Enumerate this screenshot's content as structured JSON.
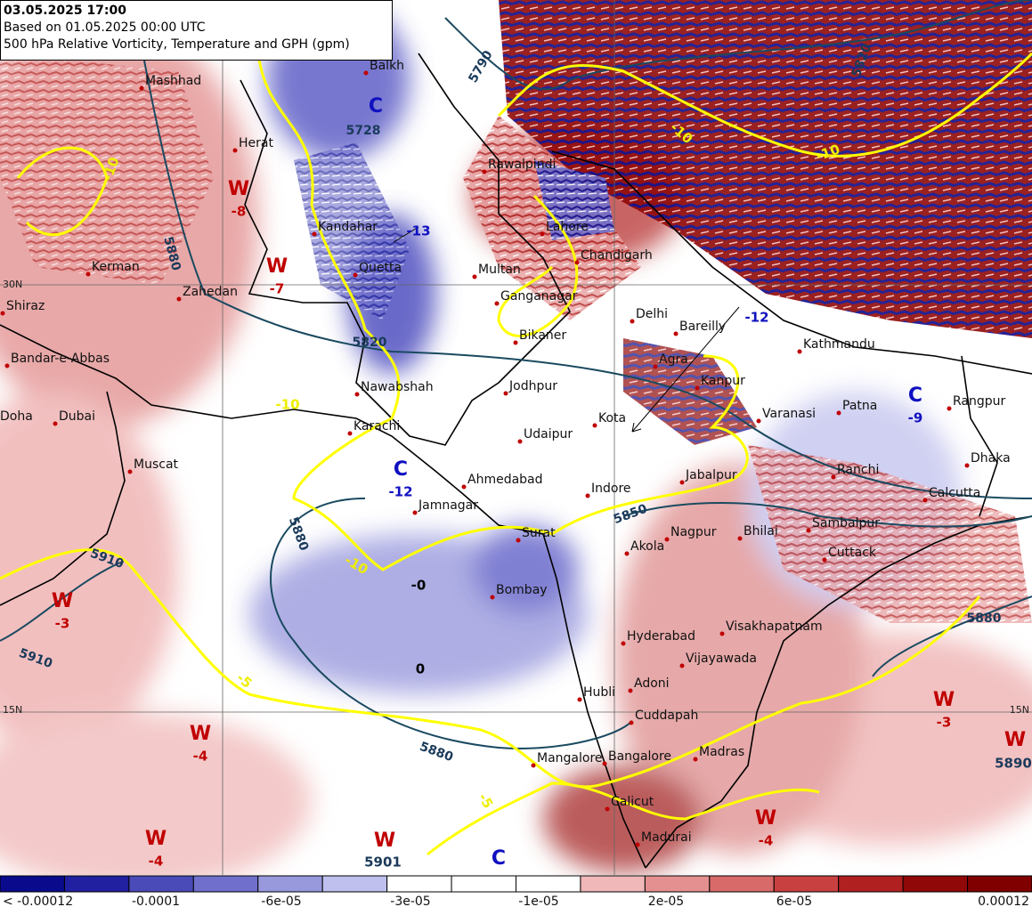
{
  "header": {
    "lines": [
      "03.05.2025 17:00",
      "Based on 01.05.2025 00:00 UTC",
      "500 hPa Relative Vorticity, Temperature and GPH (gpm)"
    ]
  },
  "map": {
    "cities": [
      "Mashhad",
      "Herat",
      "Kandahar",
      "Quetta",
      "Zahedan",
      "Kerman",
      "Shiraz",
      "Bandar-e-Abbas",
      "Doha",
      "Dubai",
      "Muscat",
      "Karachi",
      "Nawabshah",
      "Multan",
      "Lahore",
      "Rawalpindi",
      "Chandigarh",
      "Delhi",
      "Bareilly",
      "Bikaner",
      "Ganganagar",
      "Jodhpur",
      "Agra",
      "Kanpur",
      "Varanasi",
      "Patna",
      "Kathmandu",
      "Rangpur",
      "Kota",
      "Udaipur",
      "Ahmedabad",
      "Jamnagar",
      "Indore",
      "Jabalpur",
      "Ranchi",
      "Calcutta",
      "Dhaka",
      "Surat",
      "Nagpur",
      "Bhilai",
      "Sambalpur",
      "Cuttack",
      "Akola",
      "Bombay",
      "Hyderabad",
      "Visakhapatnam",
      "Vijayawada",
      "Hubli",
      "Adoni",
      "Cuddapah",
      "Madras",
      "Mangalore",
      "Bangalore",
      "Calicut",
      "Madurai",
      "Balkh"
    ],
    "systems": [
      {
        "letter": "W",
        "value": "-8"
      },
      {
        "letter": "W",
        "value": "-7"
      },
      {
        "letter": "C",
        "value": "-12"
      },
      {
        "letter": "W",
        "value": "-3"
      },
      {
        "letter": "W",
        "value": "-4"
      },
      {
        "letter": "W",
        "value": "-4"
      },
      {
        "letter": "W"
      },
      {
        "letter": "C"
      },
      {
        "letter": "W",
        "value": "-4"
      },
      {
        "letter": "W",
        "value": "-3"
      },
      {
        "letter": "W"
      },
      {
        "letter": "C",
        "value": "-9"
      },
      {
        "letter": "C"
      }
    ],
    "loose_values": [
      "-12",
      "-13",
      "-0",
      "0",
      "5901",
      "5890"
    ],
    "contour_labels": [
      "5880",
      "5820",
      "5880",
      "5880",
      "5910",
      "5850",
      "5880",
      "5820",
      "5790",
      "5728",
      "5910"
    ],
    "temperature_labels": [
      "-10",
      "-10",
      "-10",
      "-5",
      "-5",
      "-10",
      "-10"
    ],
    "lat_labels": [
      "30N",
      "15N",
      "15N"
    ],
    "colorbar": {
      "labels": [
        "< -0.00012",
        "-0.0001",
        "-6e-05",
        "-3e-05",
        "-1e-05",
        "2e-05",
        "6e-05",
        "0.00012"
      ]
    }
  }
}
